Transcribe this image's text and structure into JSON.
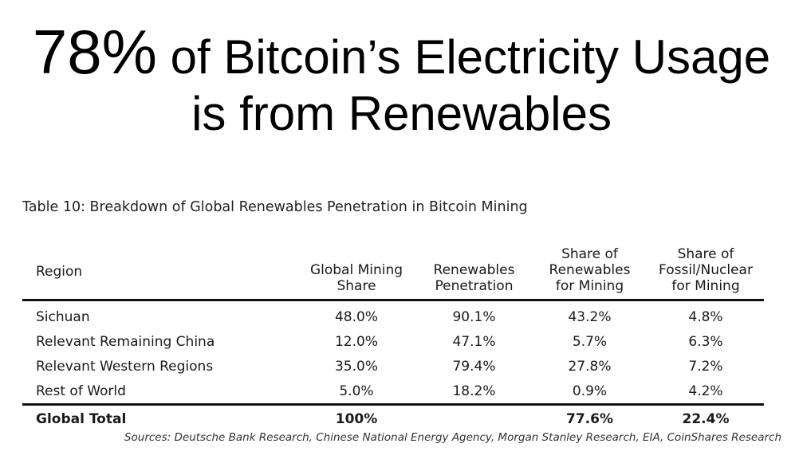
{
  "headline": {
    "big_number": "78%",
    "line1_rest": " of Bitcoin’s Electricity Usage",
    "line2": "is from Renewables"
  },
  "table": {
    "caption": "Table 10: Breakdown of Global Renewables Penetration in Bitcoin Mining",
    "headers": {
      "region": "Region",
      "mining_share": [
        "Global Mining",
        "Share"
      ],
      "renewables_penetration": [
        "Renewables",
        "Penetration"
      ],
      "share_renewables": [
        "Share of",
        "Renewables",
        "for Mining"
      ],
      "share_fossil": [
        "Share of",
        "Fossil/Nuclear",
        "for Mining"
      ]
    },
    "rows": [
      {
        "region": "Sichuan",
        "mining_share": "48.0%",
        "renewables_penetration": "90.1%",
        "share_renewables": "43.2%",
        "share_fossil": "4.8%"
      },
      {
        "region": "Relevant Remaining China",
        "mining_share": "12.0%",
        "renewables_penetration": "47.1%",
        "share_renewables": "5.7%",
        "share_fossil": "6.3%"
      },
      {
        "region": "Relevant Western Regions",
        "mining_share": "35.0%",
        "renewables_penetration": "79.4%",
        "share_renewables": "27.8%",
        "share_fossil": "7.2%"
      },
      {
        "region": "Rest of World",
        "mining_share": "5.0%",
        "renewables_penetration": "18.2%",
        "share_renewables": "0.9%",
        "share_fossil": "4.2%"
      }
    ],
    "total": {
      "region": "Global Total",
      "mining_share": "100%",
      "renewables_penetration": "",
      "share_renewables": "77.6%",
      "share_fossil": "22.4%"
    }
  },
  "sources": "Sources: Deutsche Bank Research, Chinese National Energy Agency, Morgan Stanley Research, EIA, CoinShares Research"
}
